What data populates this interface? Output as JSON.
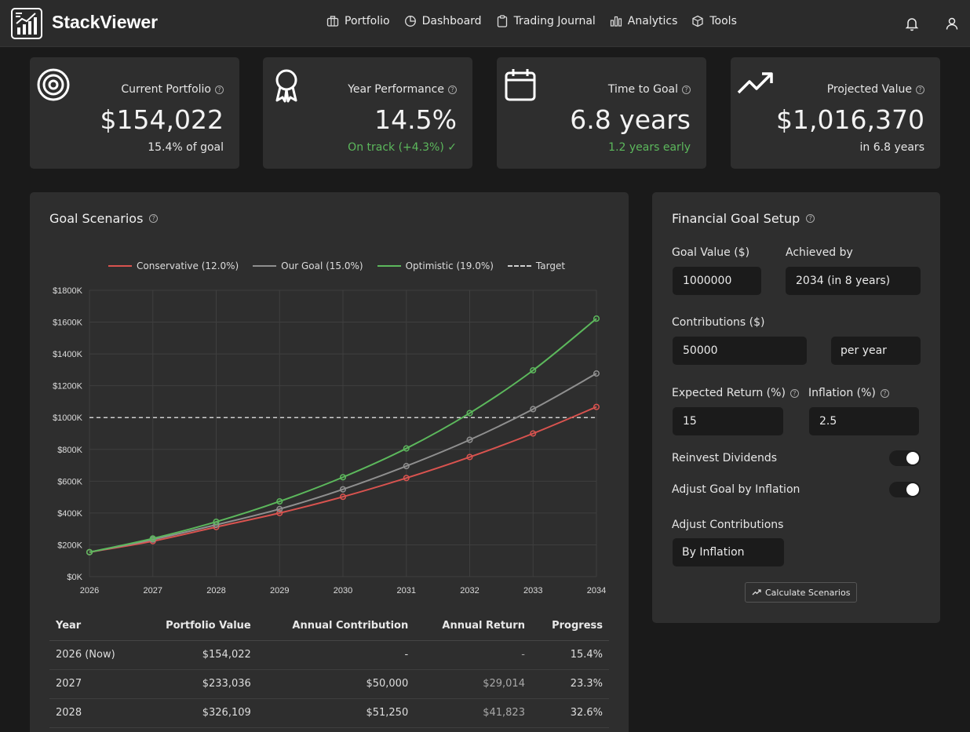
{
  "app": {
    "brand": "StackViewer"
  },
  "nav": [
    {
      "label": "Portfolio",
      "icon": "briefcase-icon"
    },
    {
      "label": "Dashboard",
      "icon": "pie-icon"
    },
    {
      "label": "Trading Journal",
      "icon": "clipboard-icon"
    },
    {
      "label": "Analytics",
      "icon": "bar-chart-icon"
    },
    {
      "label": "Tools",
      "icon": "cube-icon"
    }
  ],
  "stats": [
    {
      "label": "Current Portfolio",
      "value": "$154,022",
      "sub": "15.4% of goal",
      "icon": "target-icon"
    },
    {
      "label": "Year Performance",
      "value": "14.5%",
      "sub": "On track (+4.3%) ✓",
      "icon": "award-icon"
    },
    {
      "label": "Time to Goal",
      "value": "6.8 years",
      "sub": "1.2 years early",
      "icon": "calendar-icon"
    },
    {
      "label": "Projected Value",
      "value": "$1,016,370",
      "sub": "in 6.8 years",
      "icon": "trending-up-icon"
    }
  ],
  "scenarios": {
    "title": "Goal Scenarios"
  },
  "chart_data": {
    "type": "line",
    "x": [
      "2026",
      "2027",
      "2028",
      "2029",
      "2030",
      "2031",
      "2032",
      "2033",
      "2034"
    ],
    "series": [
      {
        "name": "Conservative (12.0%)",
        "color": "#d9534f",
        "values": [
          154,
          223,
          312,
          400,
          502,
          620,
          752,
          900,
          1067
        ]
      },
      {
        "name": "Our Goal (15.0%)",
        "color": "#8f8f8f",
        "values": [
          154,
          233,
          326,
          425,
          549,
          695,
          860,
          1053,
          1277
        ]
      },
      {
        "name": "Optimistic (19.0%)",
        "color": "#5cb85c",
        "values": [
          154,
          240,
          345,
          473,
          625,
          806,
          1028,
          1297,
          1622
        ]
      }
    ],
    "target": {
      "name": "Target",
      "value": 1000
    },
    "y_ticks": [
      "$0K",
      "$200K",
      "$400K",
      "$600K",
      "$800K",
      "$1000K",
      "$1200K",
      "$1400K",
      "$1600K",
      "$1800K"
    ],
    "ylim": [
      0,
      1800
    ],
    "grid": true,
    "legend_position": "top"
  },
  "table": {
    "headers": [
      "Year",
      "Portfolio Value",
      "Annual Contribution",
      "Annual Return",
      "Progress"
    ],
    "rows": [
      [
        "2026 (Now)",
        "$154,022",
        "-",
        "-",
        "15.4%"
      ],
      [
        "2027",
        "$233,036",
        "$50,000",
        "$29,014",
        "23.3%"
      ],
      [
        "2028",
        "$326,109",
        "$51,250",
        "$41,823",
        "32.6%"
      ]
    ]
  },
  "setup": {
    "title": "Financial Goal Setup",
    "goal_value_label": "Goal Value ($)",
    "goal_value": "1000000",
    "achieved_by_label": "Achieved by",
    "achieved_by": "2034 (in 8 years)",
    "contributions_label": "Contributions ($)",
    "contributions": "50000",
    "frequency": "per year",
    "expected_return_label": "Expected Return (%)",
    "expected_return": "15",
    "inflation_label": "Inflation (%)",
    "inflation": "2.5",
    "reinvest_label": "Reinvest Dividends",
    "adjust_goal_label": "Adjust Goal by Inflation",
    "adjust_contrib_label": "Adjust Contributions",
    "adjust_contrib": "By Inflation",
    "button": "Calculate Scenarios"
  }
}
